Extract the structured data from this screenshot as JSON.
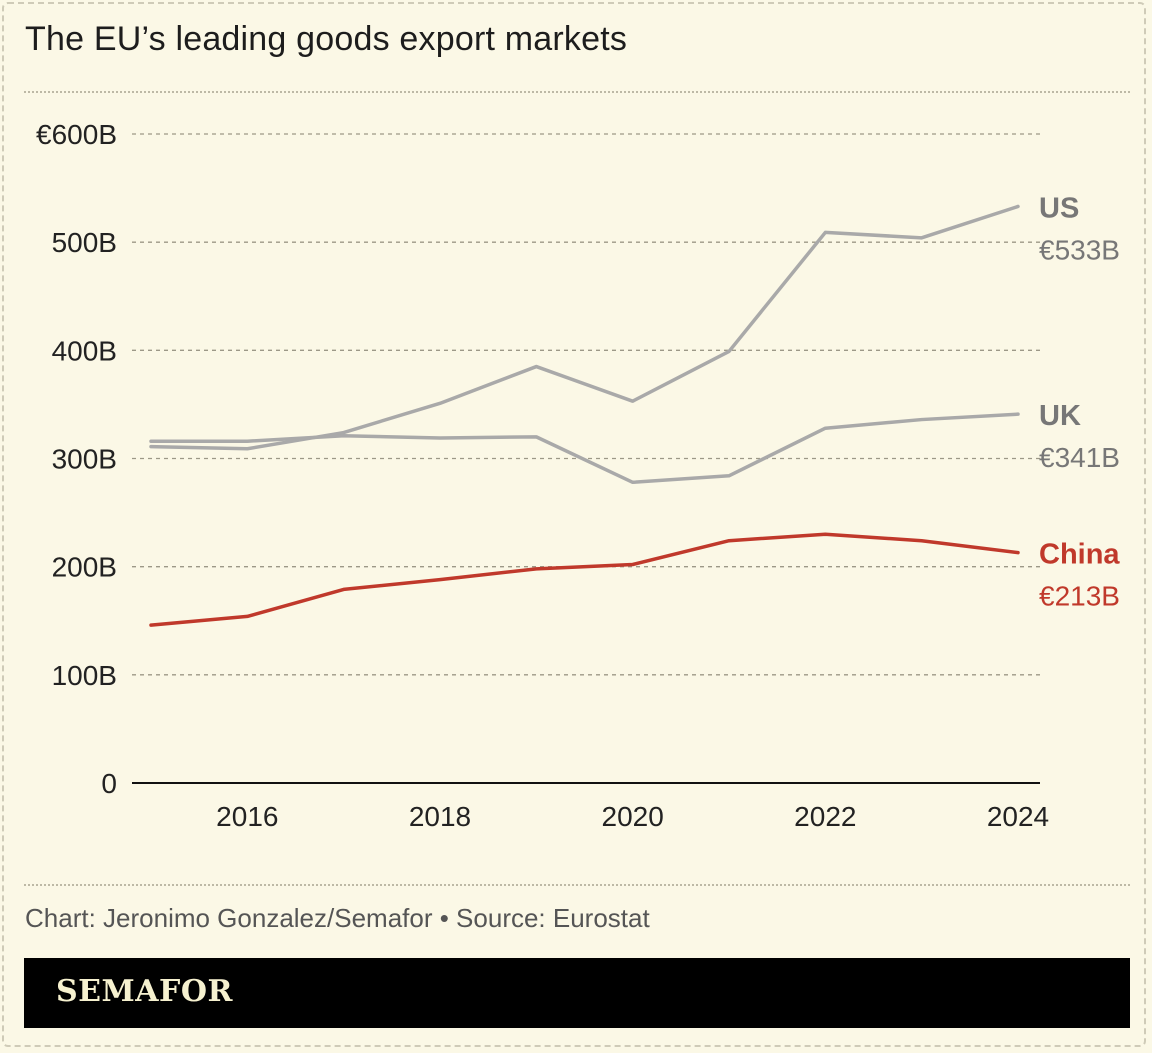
{
  "title": "The EU’s leading goods export markets",
  "source": "Chart: Jeronimo Gonzalez/Semafor • Source: Eurostat",
  "brand": "SEMAFOR",
  "chart_data": {
    "type": "line",
    "x": [
      2015,
      2016,
      2017,
      2018,
      2019,
      2020,
      2021,
      2022,
      2023,
      2024
    ],
    "x_ticks": [
      "2016",
      "2018",
      "2020",
      "2022",
      "2024"
    ],
    "y_ticks": [
      "0",
      "100B",
      "200B",
      "300B",
      "400B",
      "500B",
      "€600B"
    ],
    "ylim": [
      0,
      600
    ],
    "grid": true,
    "series": [
      {
        "name": "US",
        "end_label": "€533B",
        "color": "#a9a9a9",
        "label_color": "#777777",
        "values": [
          311,
          309,
          324,
          351,
          385,
          353,
          399,
          509,
          504,
          533
        ]
      },
      {
        "name": "UK",
        "end_label": "€341B",
        "color": "#a9a9a9",
        "label_color": "#777777",
        "values": [
          316,
          316,
          321,
          319,
          320,
          278,
          284,
          328,
          336,
          341
        ]
      },
      {
        "name": "China",
        "end_label": "€213B",
        "color": "#c0392b",
        "label_color": "#c0392b",
        "values": [
          146,
          154,
          179,
          188,
          198,
          202,
          224,
          230,
          224,
          213
        ]
      }
    ]
  }
}
